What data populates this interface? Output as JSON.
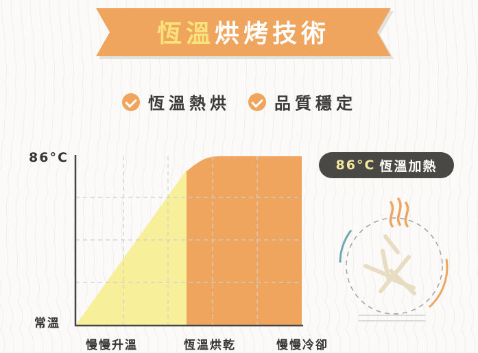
{
  "banner": {
    "title_highlight": "恆溫",
    "title_rest": "烘烤技術"
  },
  "features": [
    {
      "label": "恆溫熱烘"
    },
    {
      "label": "品質穩定"
    }
  ],
  "diagram": {
    "y_top_label": "86°C",
    "y_bottom_label": "常溫",
    "stages": [
      "慢慢升溫",
      "恆溫烘乾",
      "慢慢冷卻"
    ]
  },
  "badge": {
    "temp": "86°C",
    "text": "恆溫加熱"
  },
  "colors": {
    "orange": "#efa55e",
    "yellow": "#f7ef9a",
    "dark": "#4a4845",
    "teal": "#6fa8b0",
    "title_highlight": "#f9e27a"
  }
}
